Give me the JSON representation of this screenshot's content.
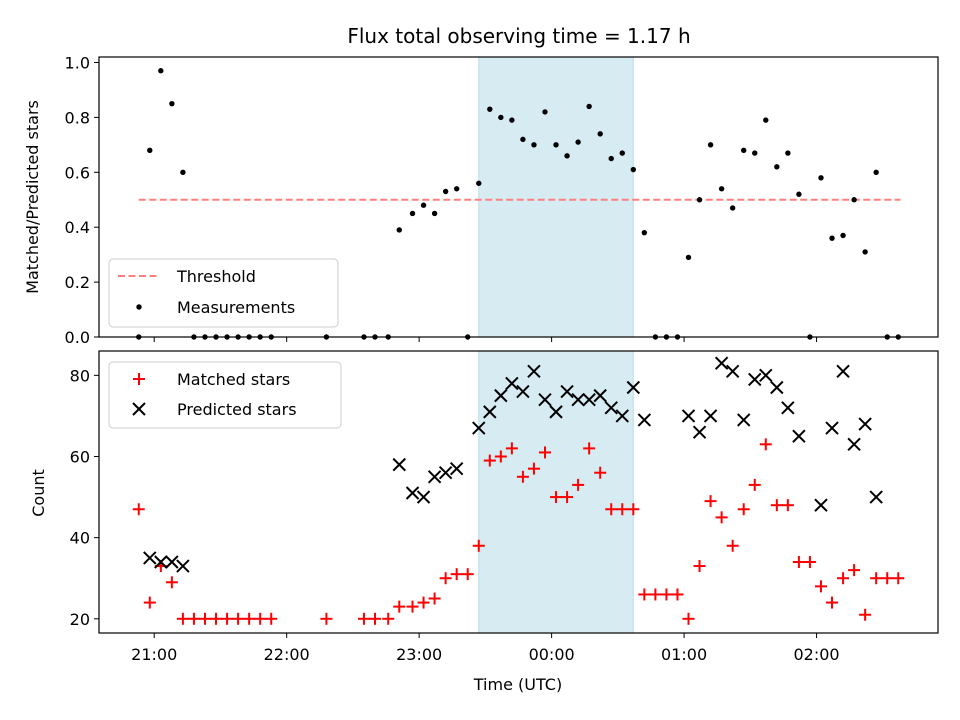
{
  "chart_data": [
    {
      "type": "scatter",
      "title": "Flux total observing time = 1.17 h",
      "xlabel": "",
      "ylabel": "Matched/Predicted stars",
      "ylim": [
        0,
        1.02
      ],
      "yticks": [
        "0.0",
        "0.2",
        "0.4",
        "0.6",
        "0.8",
        "1.0"
      ],
      "xlim": [
        "20:35",
        "02:55"
      ],
      "x_tick_marks": [
        "21:00",
        "22:00",
        "23:00",
        "00:00",
        "01:00",
        "02:00"
      ],
      "x_tick_labels_shown": false,
      "shaded_interval": {
        "start": "23:27",
        "end": "00:37",
        "color": "#add8e6"
      },
      "threshold": {
        "label": "Threshold",
        "value": 0.5,
        "x_start": "20:53",
        "x_end": "02:38",
        "color": "#ff7f7f",
        "style": "dashed"
      },
      "legend": {
        "position": "lower-left",
        "entries": [
          "Threshold",
          "Measurements"
        ]
      },
      "grid": false,
      "series": [
        {
          "name": "Measurements",
          "marker": "dot",
          "color": "#000000",
          "points": [
            [
              "20:53",
              0.0
            ],
            [
              "20:58",
              0.68
            ],
            [
              "21:03",
              0.97
            ],
            [
              "21:08",
              0.85
            ],
            [
              "21:13",
              0.6
            ],
            [
              "21:18",
              0.0
            ],
            [
              "21:23",
              0.0
            ],
            [
              "21:28",
              0.0
            ],
            [
              "21:33",
              0.0
            ],
            [
              "21:38",
              0.0
            ],
            [
              "21:43",
              0.0
            ],
            [
              "21:48",
              0.0
            ],
            [
              "21:53",
              0.0
            ],
            [
              "22:18",
              0.0
            ],
            [
              "22:35",
              0.0
            ],
            [
              "22:40",
              0.0
            ],
            [
              "22:46",
              0.0
            ],
            [
              "22:51",
              0.39
            ],
            [
              "22:57",
              0.45
            ],
            [
              "23:02",
              0.48
            ],
            [
              "23:07",
              0.45
            ],
            [
              "23:12",
              0.53
            ],
            [
              "23:17",
              0.54
            ],
            [
              "23:22",
              0.0
            ],
            [
              "23:27",
              0.56
            ],
            [
              "23:32",
              0.83
            ],
            [
              "23:37",
              0.8
            ],
            [
              "23:42",
              0.79
            ],
            [
              "23:47",
              0.72
            ],
            [
              "23:52",
              0.7
            ],
            [
              "23:57",
              0.82
            ],
            [
              "00:02",
              0.7
            ],
            [
              "00:07",
              0.66
            ],
            [
              "00:12",
              0.71
            ],
            [
              "00:17",
              0.84
            ],
            [
              "00:22",
              0.74
            ],
            [
              "00:27",
              0.65
            ],
            [
              "00:32",
              0.67
            ],
            [
              "00:37",
              0.61
            ],
            [
              "00:42",
              0.38
            ],
            [
              "00:47",
              0.0
            ],
            [
              "00:52",
              0.0
            ],
            [
              "00:57",
              0.0
            ],
            [
              "01:02",
              0.29
            ],
            [
              "01:07",
              0.5
            ],
            [
              "01:12",
              0.7
            ],
            [
              "01:17",
              0.54
            ],
            [
              "01:22",
              0.47
            ],
            [
              "01:27",
              0.68
            ],
            [
              "01:32",
              0.67
            ],
            [
              "01:37",
              0.79
            ],
            [
              "01:42",
              0.62
            ],
            [
              "01:47",
              0.67
            ],
            [
              "01:52",
              0.52
            ],
            [
              "01:57",
              0.0
            ],
            [
              "02:02",
              0.58
            ],
            [
              "02:07",
              0.36
            ],
            [
              "02:12",
              0.37
            ],
            [
              "02:17",
              0.5
            ],
            [
              "02:22",
              0.31
            ],
            [
              "02:27",
              0.6
            ],
            [
              "02:32",
              0.0
            ],
            [
              "02:37",
              0.0
            ]
          ]
        }
      ]
    },
    {
      "type": "scatter",
      "title": "",
      "xlabel": "Time (UTC)",
      "ylabel": "Count",
      "ylim": [
        16.5,
        86
      ],
      "yticks": [
        "20",
        "40",
        "60",
        "80"
      ],
      "xlim": [
        "20:35",
        "02:55"
      ],
      "x_tick_labels": [
        "21:00",
        "22:00",
        "23:00",
        "00:00",
        "01:00",
        "02:00"
      ],
      "shaded_interval": {
        "start": "23:27",
        "end": "00:37",
        "color": "#add8e6"
      },
      "legend": {
        "position": "top-left",
        "entries": [
          "Matched stars",
          "Predicted stars"
        ]
      },
      "grid": false,
      "series": [
        {
          "name": "Matched stars",
          "marker": "plus",
          "color": "#ff0000",
          "points": [
            [
              "20:53",
              47
            ],
            [
              "20:58",
              24
            ],
            [
              "21:03",
              33
            ],
            [
              "21:08",
              29
            ],
            [
              "21:13",
              20
            ],
            [
              "21:18",
              20
            ],
            [
              "21:23",
              20
            ],
            [
              "21:28",
              20
            ],
            [
              "21:33",
              20
            ],
            [
              "21:38",
              20
            ],
            [
              "21:43",
              20
            ],
            [
              "21:48",
              20
            ],
            [
              "21:53",
              20
            ],
            [
              "22:18",
              20
            ],
            [
              "22:35",
              20
            ],
            [
              "22:40",
              20
            ],
            [
              "22:46",
              20
            ],
            [
              "22:51",
              23
            ],
            [
              "22:57",
              23
            ],
            [
              "23:02",
              24
            ],
            [
              "23:07",
              25
            ],
            [
              "23:12",
              30
            ],
            [
              "23:17",
              31
            ],
            [
              "23:22",
              31
            ],
            [
              "23:27",
              38
            ],
            [
              "23:32",
              59
            ],
            [
              "23:37",
              60
            ],
            [
              "23:42",
              62
            ],
            [
              "23:47",
              55
            ],
            [
              "23:52",
              57
            ],
            [
              "23:57",
              61
            ],
            [
              "00:02",
              50
            ],
            [
              "00:07",
              50
            ],
            [
              "00:12",
              53
            ],
            [
              "00:17",
              62
            ],
            [
              "00:22",
              56
            ],
            [
              "00:27",
              47
            ],
            [
              "00:32",
              47
            ],
            [
              "00:37",
              47
            ],
            [
              "00:42",
              26
            ],
            [
              "00:47",
              26
            ],
            [
              "00:52",
              26
            ],
            [
              "00:57",
              26
            ],
            [
              "01:02",
              20
            ],
            [
              "01:07",
              33
            ],
            [
              "01:12",
              49
            ],
            [
              "01:17",
              45
            ],
            [
              "01:22",
              38
            ],
            [
              "01:27",
              47
            ],
            [
              "01:32",
              53
            ],
            [
              "01:37",
              63
            ],
            [
              "01:42",
              48
            ],
            [
              "01:47",
              48
            ],
            [
              "01:52",
              34
            ],
            [
              "01:57",
              34
            ],
            [
              "02:02",
              28
            ],
            [
              "02:07",
              24
            ],
            [
              "02:12",
              30
            ],
            [
              "02:17",
              32
            ],
            [
              "02:22",
              21
            ],
            [
              "02:27",
              30
            ],
            [
              "02:32",
              30
            ],
            [
              "02:37",
              30
            ]
          ]
        },
        {
          "name": "Predicted stars",
          "marker": "x",
          "color": "#000000",
          "points": [
            [
              "20:58",
              35
            ],
            [
              "21:03",
              34
            ],
            [
              "21:08",
              34
            ],
            [
              "21:13",
              33
            ],
            [
              "22:51",
              58
            ],
            [
              "22:57",
              51
            ],
            [
              "23:02",
              50
            ],
            [
              "23:07",
              55
            ],
            [
              "23:12",
              56
            ],
            [
              "23:17",
              57
            ],
            [
              "23:27",
              67
            ],
            [
              "23:32",
              71
            ],
            [
              "23:37",
              75
            ],
            [
              "23:42",
              78
            ],
            [
              "23:47",
              76
            ],
            [
              "23:52",
              81
            ],
            [
              "23:57",
              74
            ],
            [
              "00:02",
              71
            ],
            [
              "00:07",
              76
            ],
            [
              "00:12",
              74
            ],
            [
              "00:17",
              74
            ],
            [
              "00:22",
              75
            ],
            [
              "00:27",
              72
            ],
            [
              "00:32",
              70
            ],
            [
              "00:37",
              77
            ],
            [
              "00:42",
              69
            ],
            [
              "01:02",
              70
            ],
            [
              "01:07",
              66
            ],
            [
              "01:12",
              70
            ],
            [
              "01:17",
              83
            ],
            [
              "01:22",
              81
            ],
            [
              "01:27",
              69
            ],
            [
              "01:32",
              79
            ],
            [
              "01:37",
              80
            ],
            [
              "01:42",
              77
            ],
            [
              "01:47",
              72
            ],
            [
              "01:52",
              65
            ],
            [
              "02:02",
              48
            ],
            [
              "02:07",
              67
            ],
            [
              "02:12",
              81
            ],
            [
              "02:17",
              63
            ],
            [
              "02:22",
              68
            ],
            [
              "02:27",
              50
            ]
          ]
        }
      ]
    }
  ]
}
